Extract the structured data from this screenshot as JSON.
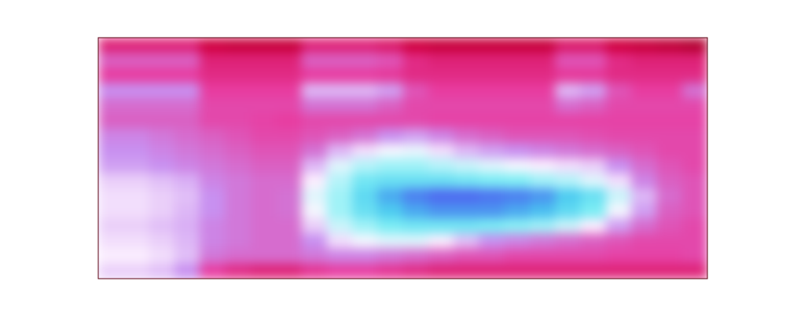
{
  "chart_data": {
    "type": "heatmap",
    "tick_labels": false,
    "zlim": [
      0,
      1
    ],
    "cells": [
      [
        0.3,
        0.3,
        0.3,
        0.3,
        0.22,
        0.2,
        0.2,
        0.2,
        0.3,
        0.3,
        0.3,
        0.28,
        0.22,
        0.2,
        0.2,
        0.2,
        0.2,
        0.2,
        0.28,
        0.28,
        0.22,
        0.2,
        0.18,
        0.15
      ],
      [
        0.42,
        0.42,
        0.42,
        0.42,
        0.3,
        0.3,
        0.3,
        0.3,
        0.42,
        0.42,
        0.42,
        0.4,
        0.32,
        0.3,
        0.3,
        0.3,
        0.3,
        0.3,
        0.4,
        0.4,
        0.32,
        0.3,
        0.3,
        0.3
      ],
      [
        0.36,
        0.36,
        0.36,
        0.36,
        0.32,
        0.32,
        0.32,
        0.32,
        0.36,
        0.36,
        0.36,
        0.35,
        0.32,
        0.32,
        0.32,
        0.32,
        0.32,
        0.32,
        0.35,
        0.35,
        0.32,
        0.32,
        0.32,
        0.32
      ],
      [
        0.5,
        0.5,
        0.5,
        0.5,
        0.36,
        0.36,
        0.36,
        0.36,
        0.55,
        0.55,
        0.55,
        0.52,
        0.4,
        0.36,
        0.36,
        0.36,
        0.36,
        0.36,
        0.55,
        0.52,
        0.4,
        0.36,
        0.36,
        0.45
      ],
      [
        0.44,
        0.44,
        0.44,
        0.44,
        0.38,
        0.38,
        0.38,
        0.38,
        0.45,
        0.45,
        0.45,
        0.42,
        0.38,
        0.38,
        0.38,
        0.38,
        0.38,
        0.38,
        0.44,
        0.42,
        0.38,
        0.38,
        0.38,
        0.38
      ],
      [
        0.42,
        0.42,
        0.42,
        0.42,
        0.38,
        0.38,
        0.37,
        0.36,
        0.38,
        0.38,
        0.38,
        0.38,
        0.38,
        0.37,
        0.37,
        0.37,
        0.37,
        0.37,
        0.37,
        0.37,
        0.37,
        0.37,
        0.37,
        0.37
      ],
      [
        0.48,
        0.48,
        0.46,
        0.44,
        0.42,
        0.4,
        0.38,
        0.38,
        0.4,
        0.42,
        0.45,
        0.5,
        0.52,
        0.48,
        0.44,
        0.42,
        0.4,
        0.4,
        0.4,
        0.39,
        0.38,
        0.38,
        0.38,
        0.38
      ],
      [
        0.5,
        0.5,
        0.48,
        0.46,
        0.44,
        0.42,
        0.4,
        0.4,
        0.45,
        0.55,
        0.6,
        0.64,
        0.65,
        0.6,
        0.55,
        0.52,
        0.5,
        0.48,
        0.46,
        0.44,
        0.42,
        0.4,
        0.38,
        0.38
      ],
      [
        0.52,
        0.52,
        0.5,
        0.48,
        0.46,
        0.44,
        0.42,
        0.42,
        0.55,
        0.66,
        0.7,
        0.72,
        0.72,
        0.7,
        0.68,
        0.66,
        0.64,
        0.62,
        0.6,
        0.58,
        0.5,
        0.44,
        0.4,
        0.38
      ],
      [
        0.58,
        0.58,
        0.56,
        0.54,
        0.48,
        0.46,
        0.44,
        0.44,
        0.62,
        0.7,
        0.78,
        0.8,
        0.8,
        0.8,
        0.78,
        0.76,
        0.75,
        0.72,
        0.7,
        0.66,
        0.6,
        0.48,
        0.42,
        0.4
      ],
      [
        0.6,
        0.6,
        0.58,
        0.56,
        0.5,
        0.46,
        0.44,
        0.45,
        0.66,
        0.72,
        0.82,
        0.9,
        0.94,
        0.96,
        0.96,
        0.95,
        0.94,
        0.92,
        0.86,
        0.8,
        0.68,
        0.55,
        0.44,
        0.4
      ],
      [
        0.6,
        0.6,
        0.58,
        0.55,
        0.5,
        0.46,
        0.44,
        0.45,
        0.64,
        0.72,
        0.8,
        0.86,
        0.9,
        0.92,
        0.92,
        0.92,
        0.9,
        0.88,
        0.82,
        0.76,
        0.64,
        0.52,
        0.42,
        0.4
      ],
      [
        0.58,
        0.58,
        0.56,
        0.54,
        0.48,
        0.46,
        0.44,
        0.44,
        0.58,
        0.68,
        0.72,
        0.76,
        0.78,
        0.78,
        0.78,
        0.76,
        0.74,
        0.72,
        0.68,
        0.62,
        0.52,
        0.44,
        0.4,
        0.38
      ],
      [
        0.6,
        0.6,
        0.58,
        0.55,
        0.48,
        0.46,
        0.44,
        0.44,
        0.5,
        0.6,
        0.64,
        0.66,
        0.66,
        0.62,
        0.56,
        0.5,
        0.48,
        0.46,
        0.44,
        0.42,
        0.4,
        0.38,
        0.38,
        0.38
      ],
      [
        0.62,
        0.62,
        0.6,
        0.56,
        0.46,
        0.44,
        0.44,
        0.44,
        0.46,
        0.48,
        0.48,
        0.46,
        0.44,
        0.42,
        0.4,
        0.4,
        0.38,
        0.38,
        0.38,
        0.38,
        0.37,
        0.37,
        0.37,
        0.38
      ],
      [
        0.58,
        0.58,
        0.56,
        0.5,
        0.36,
        0.32,
        0.3,
        0.3,
        0.34,
        0.36,
        0.36,
        0.34,
        0.32,
        0.3,
        0.3,
        0.3,
        0.3,
        0.3,
        0.3,
        0.3,
        0.3,
        0.3,
        0.3,
        0.3
      ]
    ]
  }
}
